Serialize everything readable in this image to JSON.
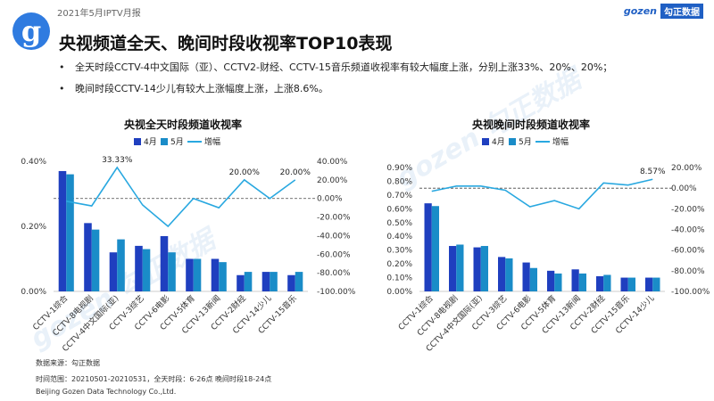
{
  "header": {
    "report_title": "2021年5月IPTV月报",
    "logo_letter": "g",
    "brand_en": "gozen",
    "brand_cn": "勾正数据"
  },
  "main_title": "央视频道全天、晚间时段收视率TOP10表现",
  "bullets": [
    "全天时段CCTV-4中文国际（亚）、CCTV2-财经、CCTV-15音乐频道收视率有较大幅度上涨，分别上涨33%、20%、20%；",
    "晚间时段CCTV-14少儿有较大上涨幅度上涨，上涨8.6%。"
  ],
  "watermark": "gozen 勾正数据",
  "footer": {
    "source": "数据来源：勾正数据",
    "range": "时间范围：20210501-20210531，全天时段：6-26点  晚间时段18-24点",
    "company": "Beijing Gozen Data Technology Co.,Ltd."
  },
  "colors": {
    "april": "#1f3fbf",
    "may": "#1a8cc8",
    "growth": "#29a8e0"
  },
  "chart_data": [
    {
      "type": "bar",
      "title": "央视全天时段频道收视率",
      "legend": [
        "4月",
        "5月",
        "增幅"
      ],
      "categories": [
        "CCTV-1综合",
        "CCTV-8电视剧",
        "CCTV-4中文国际(亚)",
        "CCTV-3综艺",
        "CCTV-6电影",
        "CCTV-5体育",
        "CCTV-13新闻",
        "CCTV-2财经",
        "CCTV-14少儿",
        "CCTV-15音乐"
      ],
      "series": [
        {
          "name": "4月",
          "values": [
            0.37,
            0.21,
            0.12,
            0.14,
            0.17,
            0.1,
            0.1,
            0.05,
            0.06,
            0.05
          ]
        },
        {
          "name": "5月",
          "values": [
            0.36,
            0.19,
            0.16,
            0.13,
            0.12,
            0.1,
            0.09,
            0.06,
            0.06,
            0.06
          ]
        },
        {
          "name": "增幅",
          "values": [
            -3,
            -8,
            33.33,
            -7,
            -30,
            0,
            -10,
            20.0,
            0,
            20.0
          ],
          "axis": "right"
        }
      ],
      "y_left_ticks": [
        "0.40%",
        "0.20%",
        "0.00%"
      ],
      "ylim_left": [
        0,
        0.4
      ],
      "y_right_ticks": [
        "40.00%",
        "20.00%",
        "0.00%",
        "-20.00%",
        "-40.00%",
        "-60.00%",
        "-80.00%",
        "-100.00%"
      ],
      "ylim_right": [
        -100,
        40
      ],
      "labels": [
        {
          "index": 2,
          "text": "33.33%"
        },
        {
          "index": 7,
          "text": "20.00%"
        },
        {
          "index": 9,
          "text": "20.00%"
        }
      ]
    },
    {
      "type": "bar",
      "title": "央视晚间时段频道收视率",
      "legend": [
        "4月",
        "5月",
        "增幅"
      ],
      "categories": [
        "CCTV-1综合",
        "CCTV-8电视剧",
        "CCTV-4中文国际(亚)",
        "CCTV-3综艺",
        "CCTV-6电影",
        "CCTV-5体育",
        "CCTV-13新闻",
        "CCTV-2财经",
        "CCTV-15音乐",
        "CCTV-14少儿"
      ],
      "series": [
        {
          "name": "4月",
          "values": [
            0.64,
            0.33,
            0.32,
            0.25,
            0.21,
            0.15,
            0.16,
            0.11,
            0.1,
            0.1
          ]
        },
        {
          "name": "5月",
          "values": [
            0.62,
            0.34,
            0.33,
            0.24,
            0.17,
            0.13,
            0.13,
            0.12,
            0.1,
            0.1
          ]
        },
        {
          "name": "增幅",
          "values": [
            -3,
            2,
            2,
            -2,
            -18,
            -12,
            -20,
            5,
            3,
            8.57
          ],
          "axis": "right"
        }
      ],
      "y_left_ticks": [
        "0.90%",
        "0.80%",
        "0.70%",
        "0.60%",
        "0.50%",
        "0.40%",
        "0.30%",
        "0.20%",
        "0.10%",
        "0.00%"
      ],
      "ylim_left": [
        0,
        0.9
      ],
      "y_right_ticks": [
        "20.00%",
        "0.00%",
        "-20.00%",
        "-40.00%",
        "-60.00%",
        "-80.00%",
        "-100.00%"
      ],
      "ylim_right": [
        -100,
        20
      ],
      "labels": [
        {
          "index": 9,
          "text": "8.57%"
        }
      ]
    }
  ]
}
